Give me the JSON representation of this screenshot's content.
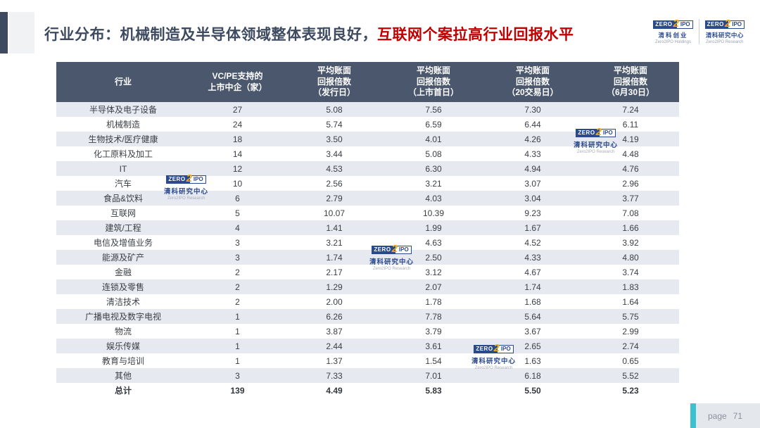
{
  "page": {
    "title_part1": "行业分布：机械制造及半导体领域整体表现良好，",
    "title_part2": "互联网个案拉高行业回报水平"
  },
  "branding": {
    "badge_zero": "ZERO",
    "badge_two": "2",
    "badge_ipo": "IPO",
    "holdings_cn": "清科创业",
    "holdings_en": "Zero2IPO Holdings",
    "research_cn": "清科研究中心",
    "research_en": "Zero2IPO Research"
  },
  "table": {
    "headers": [
      [
        "行业"
      ],
      [
        "VC/PE支持的",
        "上市中企（家）"
      ],
      [
        "平均账面",
        "回报倍数",
        "（发行日）"
      ],
      [
        "平均账面",
        "回报倍数",
        "（上市首日）"
      ],
      [
        "平均账面",
        "回报倍数",
        "（20交易日）"
      ],
      [
        "平均账面",
        "回报倍数",
        "（6月30日）"
      ]
    ],
    "rows": [
      [
        "半导体及电子设备",
        "27",
        "5.08",
        "7.56",
        "7.30",
        "7.24"
      ],
      [
        "机械制造",
        "24",
        "5.74",
        "6.59",
        "6.44",
        "6.11"
      ],
      [
        "生物技术/医疗健康",
        "18",
        "3.50",
        "4.01",
        "4.26",
        "4.19"
      ],
      [
        "化工原料及加工",
        "14",
        "3.44",
        "5.08",
        "4.33",
        "4.48"
      ],
      [
        "IT",
        "12",
        "4.53",
        "6.30",
        "4.94",
        "4.76"
      ],
      [
        "汽车",
        "10",
        "2.56",
        "3.21",
        "3.07",
        "2.96"
      ],
      [
        "食品&饮料",
        "6",
        "2.79",
        "4.03",
        "3.04",
        "3.77"
      ],
      [
        "互联网",
        "5",
        "10.07",
        "10.39",
        "9.23",
        "7.08"
      ],
      [
        "建筑/工程",
        "4",
        "1.41",
        "1.99",
        "1.67",
        "1.66"
      ],
      [
        "电信及增值业务",
        "3",
        "3.21",
        "4.63",
        "4.52",
        "3.92"
      ],
      [
        "能源及矿产",
        "3",
        "1.74",
        "2.50",
        "4.33",
        "4.80"
      ],
      [
        "金融",
        "2",
        "2.17",
        "3.12",
        "4.67",
        "3.74"
      ],
      [
        "连锁及零售",
        "2",
        "1.29",
        "2.07",
        "1.74",
        "1.83"
      ],
      [
        "清洁技术",
        "2",
        "2.00",
        "1.78",
        "1.68",
        "1.64"
      ],
      [
        "广播电视及数字电视",
        "1",
        "6.26",
        "7.78",
        "5.64",
        "5.75"
      ],
      [
        "物流",
        "1",
        "3.87",
        "3.79",
        "3.67",
        "2.99"
      ],
      [
        "娱乐传媒",
        "1",
        "2.44",
        "3.61",
        "2.65",
        "2.74"
      ],
      [
        "教育与培训",
        "1",
        "1.37",
        "1.54",
        "1.63",
        "0.65"
      ],
      [
        "其他",
        "3",
        "7.33",
        "7.01",
        "6.18",
        "5.52"
      ]
    ],
    "total": [
      "总计",
      "139",
      "4.49",
      "5.83",
      "5.50",
      "5.23"
    ]
  },
  "footer": {
    "label": "page",
    "number": "71"
  },
  "colors": {
    "header_bg": "#4A576C",
    "row_stripe": "#E6E9F0",
    "title_dark": "#3D4A5F",
    "title_highlight_red": "#C00000",
    "logo_navy": "#2B4A8C",
    "logo_yellow": "#F0A818",
    "footer_teal": "#3CC2CE"
  }
}
